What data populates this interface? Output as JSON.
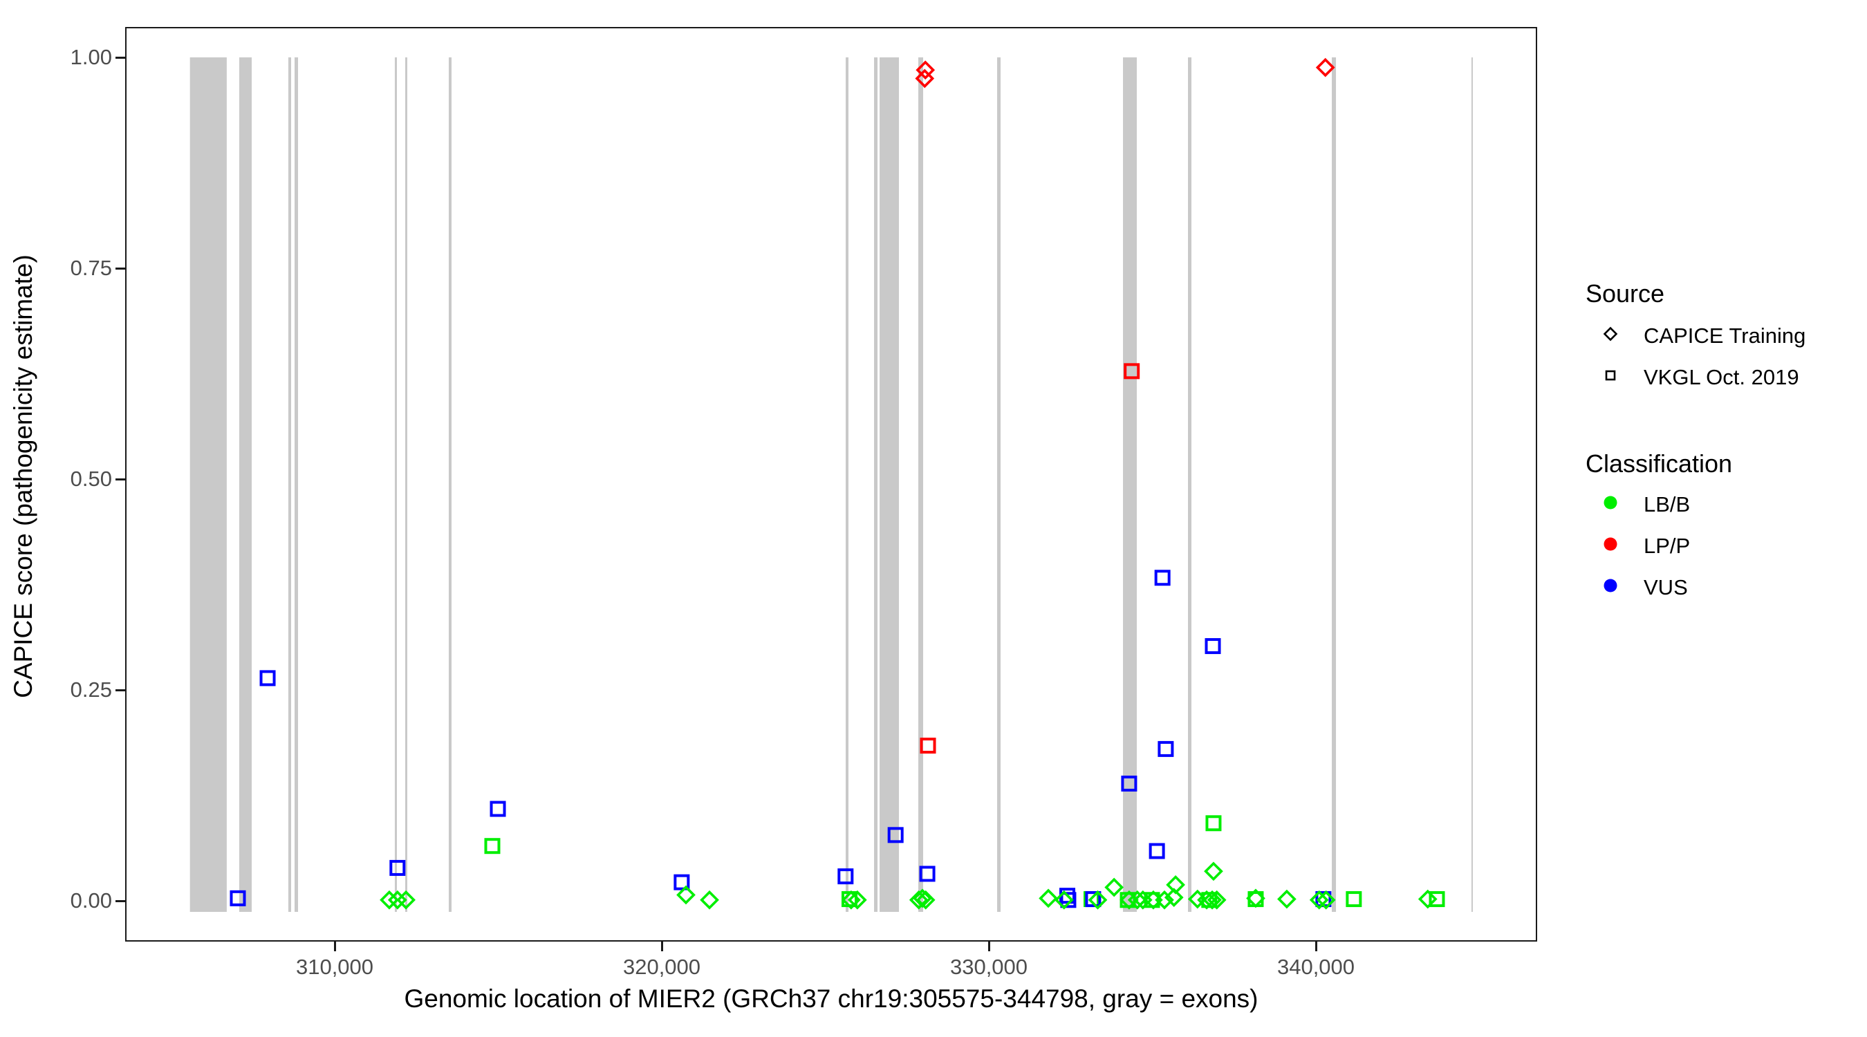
{
  "figure": {
    "x_axis_title": "Genomic location of MIER2 (GRCh37 chr19:305575-344798, gray = exons)",
    "y_axis_title": "CAPICE score (pathogenicity estimate)"
  },
  "legend": {
    "source": {
      "title": "Source",
      "items": [
        {
          "label": "CAPICE Training",
          "marker": "diamond"
        },
        {
          "label": "VKGL Oct. 2019",
          "marker": "square"
        }
      ]
    },
    "classification": {
      "title": "Classification",
      "items": [
        {
          "label": "LB/B",
          "color": "#00ee00"
        },
        {
          "label": "LP/P",
          "color": "#ff0000"
        },
        {
          "label": "VUS",
          "color": "#0000ff"
        }
      ]
    }
  },
  "chart_data": {
    "type": "scatter",
    "title": "",
    "xlabel": "Genomic location of MIER2 (GRCh37 chr19:305575-344798, gray = exons)",
    "ylabel": "CAPICE score (pathogenicity estimate)",
    "gene_range": [
      305575,
      344798
    ],
    "x_axis_domain": [
      303614,
      346759
    ],
    "ylim": [
      0,
      1
    ],
    "grid": false,
    "legend_position": "right",
    "x_ticks": [
      {
        "value": 310000,
        "label": "310,000"
      },
      {
        "value": 320000,
        "label": "320,000"
      },
      {
        "value": 330000,
        "label": "330,000"
      },
      {
        "value": 340000,
        "label": "340,000"
      }
    ],
    "y_ticks": [
      {
        "value": 0.0,
        "label": "0.00"
      },
      {
        "value": 0.25,
        "label": "0.25"
      },
      {
        "value": 0.5,
        "label": "0.50"
      },
      {
        "value": 0.75,
        "label": "0.75"
      },
      {
        "value": 1.0,
        "label": "1.00"
      }
    ],
    "exon_color": "#c9c9c9",
    "classification_colors": {
      "LB/B": "#00ee00",
      "LP/P": "#ff0000",
      "VUS": "#0000ff"
    },
    "exons": [
      [
        305575,
        306700
      ],
      [
        307082,
        307463
      ],
      [
        308583,
        308668
      ],
      [
        308774,
        308880
      ],
      [
        311839,
        311903
      ],
      [
        312156,
        312220
      ],
      [
        313488,
        313573
      ],
      [
        325624,
        325709
      ],
      [
        326491,
        326597
      ],
      [
        326660,
        327252
      ],
      [
        327844,
        327992
      ],
      [
        330254,
        330360
      ],
      [
        334102,
        334525
      ],
      [
        336089,
        336195
      ],
      [
        340487,
        340614
      ],
      [
        344756,
        344798
      ]
    ],
    "series": [
      {
        "name": "VKGL Oct. 2019",
        "marker": "square",
        "points": [
          {
            "x": 307040,
            "y": 0.003,
            "classification": "VUS"
          },
          {
            "x": 307950,
            "y": 0.264,
            "classification": "VUS"
          },
          {
            "x": 311920,
            "y": 0.039,
            "classification": "VUS"
          },
          {
            "x": 314820,
            "y": 0.065,
            "classification": "LB/B"
          },
          {
            "x": 314990,
            "y": 0.109,
            "classification": "VUS"
          },
          {
            "x": 320610,
            "y": 0.022,
            "classification": "VUS"
          },
          {
            "x": 325620,
            "y": 0.029,
            "classification": "VUS"
          },
          {
            "x": 325740,
            "y": 0.002,
            "classification": "LB/B"
          },
          {
            "x": 327150,
            "y": 0.078,
            "classification": "VUS"
          },
          {
            "x": 328120,
            "y": 0.032,
            "classification": "VUS"
          },
          {
            "x": 328140,
            "y": 0.184,
            "classification": "LP/P"
          },
          {
            "x": 332400,
            "y": 0.006,
            "classification": "VUS"
          },
          {
            "x": 332430,
            "y": 0.001,
            "classification": "VUS"
          },
          {
            "x": 333140,
            "y": 0.002,
            "classification": "LB/B"
          },
          {
            "x": 333190,
            "y": 0.002,
            "classification": "VUS"
          },
          {
            "x": 334250,
            "y": 0.001,
            "classification": "LB/B"
          },
          {
            "x": 334290,
            "y": 0.139,
            "classification": "VUS"
          },
          {
            "x": 334370,
            "y": 0.628,
            "classification": "LP/P"
          },
          {
            "x": 334990,
            "y": 0.001,
            "classification": "LB/B"
          },
          {
            "x": 335140,
            "y": 0.059,
            "classification": "VUS"
          },
          {
            "x": 335310,
            "y": 0.383,
            "classification": "VUS"
          },
          {
            "x": 335410,
            "y": 0.18,
            "classification": "VUS"
          },
          {
            "x": 336740,
            "y": 0.001,
            "classification": "LB/B"
          },
          {
            "x": 336850,
            "y": 0.302,
            "classification": "VUS"
          },
          {
            "x": 336870,
            "y": 0.092,
            "classification": "LB/B"
          },
          {
            "x": 338160,
            "y": 0.002,
            "classification": "LB/B"
          },
          {
            "x": 340230,
            "y": 0.002,
            "classification": "VUS"
          },
          {
            "x": 341160,
            "y": 0.002,
            "classification": "LB/B"
          },
          {
            "x": 343700,
            "y": 0.002,
            "classification": "LB/B"
          }
        ]
      },
      {
        "name": "CAPICE Training",
        "marker": "diamond",
        "points": [
          {
            "x": 311670,
            "y": 0.001,
            "classification": "LB/B"
          },
          {
            "x": 311920,
            "y": 0.001,
            "classification": "LB/B"
          },
          {
            "x": 312180,
            "y": 0.001,
            "classification": "LB/B"
          },
          {
            "x": 320740,
            "y": 0.007,
            "classification": "LB/B"
          },
          {
            "x": 321460,
            "y": 0.001,
            "classification": "LB/B"
          },
          {
            "x": 325790,
            "y": 0.001,
            "classification": "LB/B"
          },
          {
            "x": 325980,
            "y": 0.001,
            "classification": "LB/B"
          },
          {
            "x": 327860,
            "y": 0.001,
            "classification": "LB/B"
          },
          {
            "x": 327970,
            "y": 0.003,
            "classification": "LB/B"
          },
          {
            "x": 328070,
            "y": 0.001,
            "classification": "LB/B"
          },
          {
            "x": 328040,
            "y": 0.975,
            "classification": "LP/P"
          },
          {
            "x": 328060,
            "y": 0.985,
            "classification": "LP/P"
          },
          {
            "x": 331820,
            "y": 0.003,
            "classification": "LB/B"
          },
          {
            "x": 332300,
            "y": 0.001,
            "classification": "LB/B"
          },
          {
            "x": 333330,
            "y": 0.001,
            "classification": "LB/B"
          },
          {
            "x": 333830,
            "y": 0.016,
            "classification": "LB/B"
          },
          {
            "x": 334290,
            "y": 0.001,
            "classification": "LB/B"
          },
          {
            "x": 334540,
            "y": 0.001,
            "classification": "LB/B"
          },
          {
            "x": 334710,
            "y": 0.001,
            "classification": "LB/B"
          },
          {
            "x": 335030,
            "y": 0.001,
            "classification": "LB/B"
          },
          {
            "x": 335370,
            "y": 0.001,
            "classification": "LB/B"
          },
          {
            "x": 335660,
            "y": 0.004,
            "classification": "LB/B"
          },
          {
            "x": 335710,
            "y": 0.019,
            "classification": "LB/B"
          },
          {
            "x": 336380,
            "y": 0.002,
            "classification": "LB/B"
          },
          {
            "x": 336660,
            "y": 0.001,
            "classification": "LB/B"
          },
          {
            "x": 336830,
            "y": 0.001,
            "classification": "LB/B"
          },
          {
            "x": 336870,
            "y": 0.035,
            "classification": "LB/B"
          },
          {
            "x": 336970,
            "y": 0.001,
            "classification": "LB/B"
          },
          {
            "x": 338160,
            "y": 0.003,
            "classification": "LB/B"
          },
          {
            "x": 339110,
            "y": 0.002,
            "classification": "LB/B"
          },
          {
            "x": 340100,
            "y": 0.001,
            "classification": "LB/B"
          },
          {
            "x": 340290,
            "y": 0.988,
            "classification": "LP/P"
          },
          {
            "x": 340310,
            "y": 0.001,
            "classification": "LB/B"
          },
          {
            "x": 343420,
            "y": 0.002,
            "classification": "LB/B"
          }
        ]
      }
    ]
  }
}
